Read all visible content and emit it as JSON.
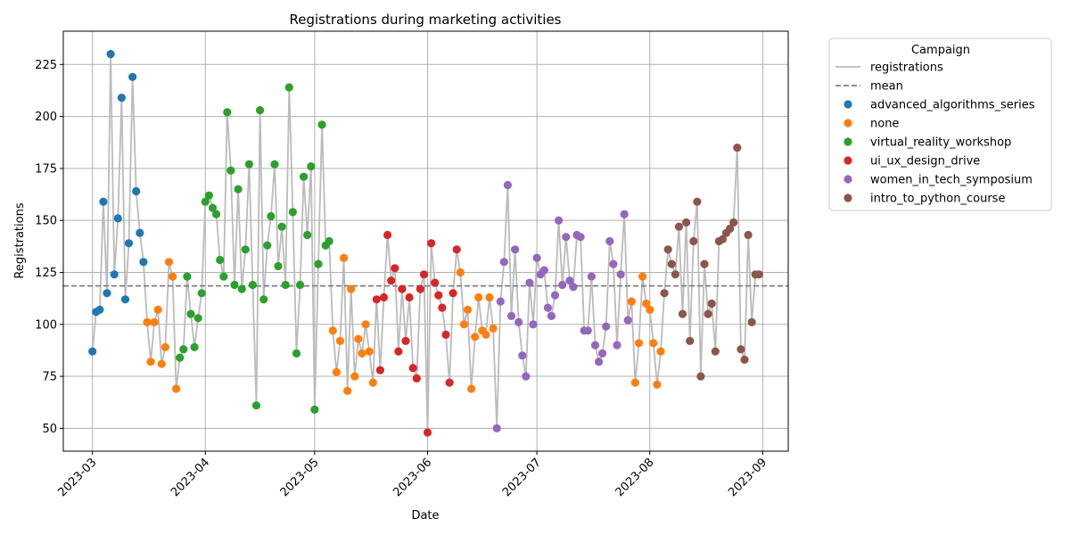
{
  "chart_data": {
    "type": "scatter",
    "title": "Registrations during marketing activities",
    "xlabel": "Date",
    "ylabel": "Registrations",
    "x_ticks": [
      "2023-03",
      "2023-04",
      "2023-05",
      "2023-06",
      "2023-07",
      "2023-08",
      "2023-09"
    ],
    "y_ticks": [
      50,
      75,
      100,
      125,
      150,
      175,
      200,
      225
    ],
    "xlim": [
      "2023-02-21",
      "2023-09-08"
    ],
    "ylim": [
      39,
      241
    ],
    "grid": true,
    "mean": 118.5,
    "legend": {
      "title": "Campaign",
      "position": "outside-right",
      "line_entries": [
        {
          "label": "registrations",
          "color": "#bbbbbb",
          "style": "solid"
        },
        {
          "label": "mean",
          "color": "#808080",
          "style": "dashed"
        }
      ]
    },
    "series": [
      {
        "name": "advanced_algorithms_series",
        "color": "#1f77b4",
        "x": [
          "2023-03-01",
          "2023-03-02",
          "2023-03-03",
          "2023-03-04",
          "2023-03-05",
          "2023-03-06",
          "2023-03-07",
          "2023-03-08",
          "2023-03-09",
          "2023-03-10",
          "2023-03-11",
          "2023-03-12",
          "2023-03-13",
          "2023-03-14",
          "2023-03-15"
        ],
        "y": [
          87,
          106,
          107,
          159,
          115,
          230,
          124,
          151,
          209,
          112,
          139,
          219,
          164,
          144,
          130
        ]
      },
      {
        "name": "none",
        "color": "#ff7f0e",
        "x": [
          "2023-03-16",
          "2023-03-17",
          "2023-03-18",
          "2023-03-19",
          "2023-03-20",
          "2023-03-21",
          "2023-03-22",
          "2023-03-23",
          "2023-03-24",
          "2023-05-06",
          "2023-05-07",
          "2023-05-08",
          "2023-05-09",
          "2023-05-10",
          "2023-05-11",
          "2023-05-12",
          "2023-05-13",
          "2023-05-14",
          "2023-05-15",
          "2023-05-16",
          "2023-05-17",
          "2023-06-10",
          "2023-06-11",
          "2023-06-12",
          "2023-06-13",
          "2023-06-14",
          "2023-06-15",
          "2023-06-16",
          "2023-06-17",
          "2023-06-18",
          "2023-06-19",
          "2023-07-27",
          "2023-07-28",
          "2023-07-29",
          "2023-07-30",
          "2023-07-31",
          "2023-08-01",
          "2023-08-02",
          "2023-08-03",
          "2023-08-04"
        ],
        "y": [
          101,
          82,
          101,
          107,
          81,
          89,
          130,
          123,
          69,
          97,
          77,
          92,
          132,
          68,
          117,
          75,
          93,
          86,
          100,
          87,
          72,
          125,
          100,
          107,
          69,
          94,
          113,
          97,
          95,
          113,
          98,
          111,
          72,
          91,
          123,
          110,
          107,
          91,
          71,
          87
        ]
      },
      {
        "name": "virtual_reality_workshop",
        "color": "#2ca02c",
        "x": [
          "2023-03-25",
          "2023-03-26",
          "2023-03-27",
          "2023-03-28",
          "2023-03-29",
          "2023-03-30",
          "2023-03-31",
          "2023-04-01",
          "2023-04-02",
          "2023-04-03",
          "2023-04-04",
          "2023-04-05",
          "2023-04-06",
          "2023-04-07",
          "2023-04-08",
          "2023-04-09",
          "2023-04-10",
          "2023-04-11",
          "2023-04-12",
          "2023-04-13",
          "2023-04-14",
          "2023-04-15",
          "2023-04-16",
          "2023-04-17",
          "2023-04-18",
          "2023-04-19",
          "2023-04-20",
          "2023-04-21",
          "2023-04-22",
          "2023-04-23",
          "2023-04-24",
          "2023-04-25",
          "2023-04-26",
          "2023-04-27",
          "2023-04-28",
          "2023-04-29",
          "2023-04-30",
          "2023-05-01",
          "2023-05-02",
          "2023-05-03",
          "2023-05-04",
          "2023-05-05"
        ],
        "y": [
          84,
          88,
          123,
          105,
          89,
          103,
          115,
          159,
          162,
          156,
          153,
          131,
          123,
          202,
          174,
          119,
          165,
          117,
          136,
          177,
          119,
          61,
          203,
          112,
          138,
          152,
          177,
          128,
          147,
          119,
          214,
          154,
          86,
          119,
          171,
          143,
          176,
          59,
          129,
          196,
          138,
          140
        ]
      },
      {
        "name": "ui_ux_design_drive",
        "color": "#d62728",
        "x": [
          "2023-05-18",
          "2023-05-19",
          "2023-05-20",
          "2023-05-21",
          "2023-05-22",
          "2023-05-23",
          "2023-05-24",
          "2023-05-25",
          "2023-05-26",
          "2023-05-27",
          "2023-05-28",
          "2023-05-29",
          "2023-05-30",
          "2023-05-31",
          "2023-06-01",
          "2023-06-02",
          "2023-06-03",
          "2023-06-04",
          "2023-06-05",
          "2023-06-06",
          "2023-06-07",
          "2023-06-08",
          "2023-06-09"
        ],
        "y": [
          112,
          78,
          113,
          143,
          121,
          127,
          87,
          117,
          92,
          113,
          79,
          74,
          117,
          124,
          48,
          139,
          120,
          114,
          108,
          95,
          72,
          115,
          136
        ]
      },
      {
        "name": "women_in_tech_symposium",
        "color": "#9467bd",
        "x": [
          "2023-06-20",
          "2023-06-21",
          "2023-06-22",
          "2023-06-23",
          "2023-06-24",
          "2023-06-25",
          "2023-06-26",
          "2023-06-27",
          "2023-06-28",
          "2023-06-29",
          "2023-06-30",
          "2023-07-01",
          "2023-07-02",
          "2023-07-03",
          "2023-07-04",
          "2023-07-05",
          "2023-07-06",
          "2023-07-07",
          "2023-07-08",
          "2023-07-09",
          "2023-07-10",
          "2023-07-11",
          "2023-07-12",
          "2023-07-13",
          "2023-07-14",
          "2023-07-15",
          "2023-07-16",
          "2023-07-17",
          "2023-07-18",
          "2023-07-19",
          "2023-07-20",
          "2023-07-21",
          "2023-07-22",
          "2023-07-23",
          "2023-07-24",
          "2023-07-25",
          "2023-07-26"
        ],
        "y": [
          50,
          111,
          130,
          167,
          104,
          136,
          101,
          85,
          75,
          120,
          100,
          132,
          124,
          126,
          108,
          104,
          114,
          150,
          119,
          142,
          121,
          118,
          143,
          142,
          97,
          97,
          123,
          90,
          82,
          86,
          99,
          140,
          129,
          90,
          124,
          153,
          102
        ]
      },
      {
        "name": "intro_to_python_course",
        "color": "#8c564b",
        "x": [
          "2023-08-05",
          "2023-08-06",
          "2023-08-07",
          "2023-08-08",
          "2023-08-09",
          "2023-08-10",
          "2023-08-11",
          "2023-08-12",
          "2023-08-13",
          "2023-08-14",
          "2023-08-15",
          "2023-08-16",
          "2023-08-17",
          "2023-08-18",
          "2023-08-19",
          "2023-08-20",
          "2023-08-21",
          "2023-08-22",
          "2023-08-23",
          "2023-08-24",
          "2023-08-25",
          "2023-08-26",
          "2023-08-27",
          "2023-08-28",
          "2023-08-29",
          "2023-08-30",
          "2023-08-31"
        ],
        "y": [
          115,
          136,
          129,
          124,
          147,
          105,
          149,
          92,
          140,
          159,
          75,
          129,
          105,
          110,
          87,
          140,
          141,
          144,
          146,
          149,
          185,
          88,
          83,
          143,
          101,
          124,
          124
        ]
      }
    ]
  }
}
